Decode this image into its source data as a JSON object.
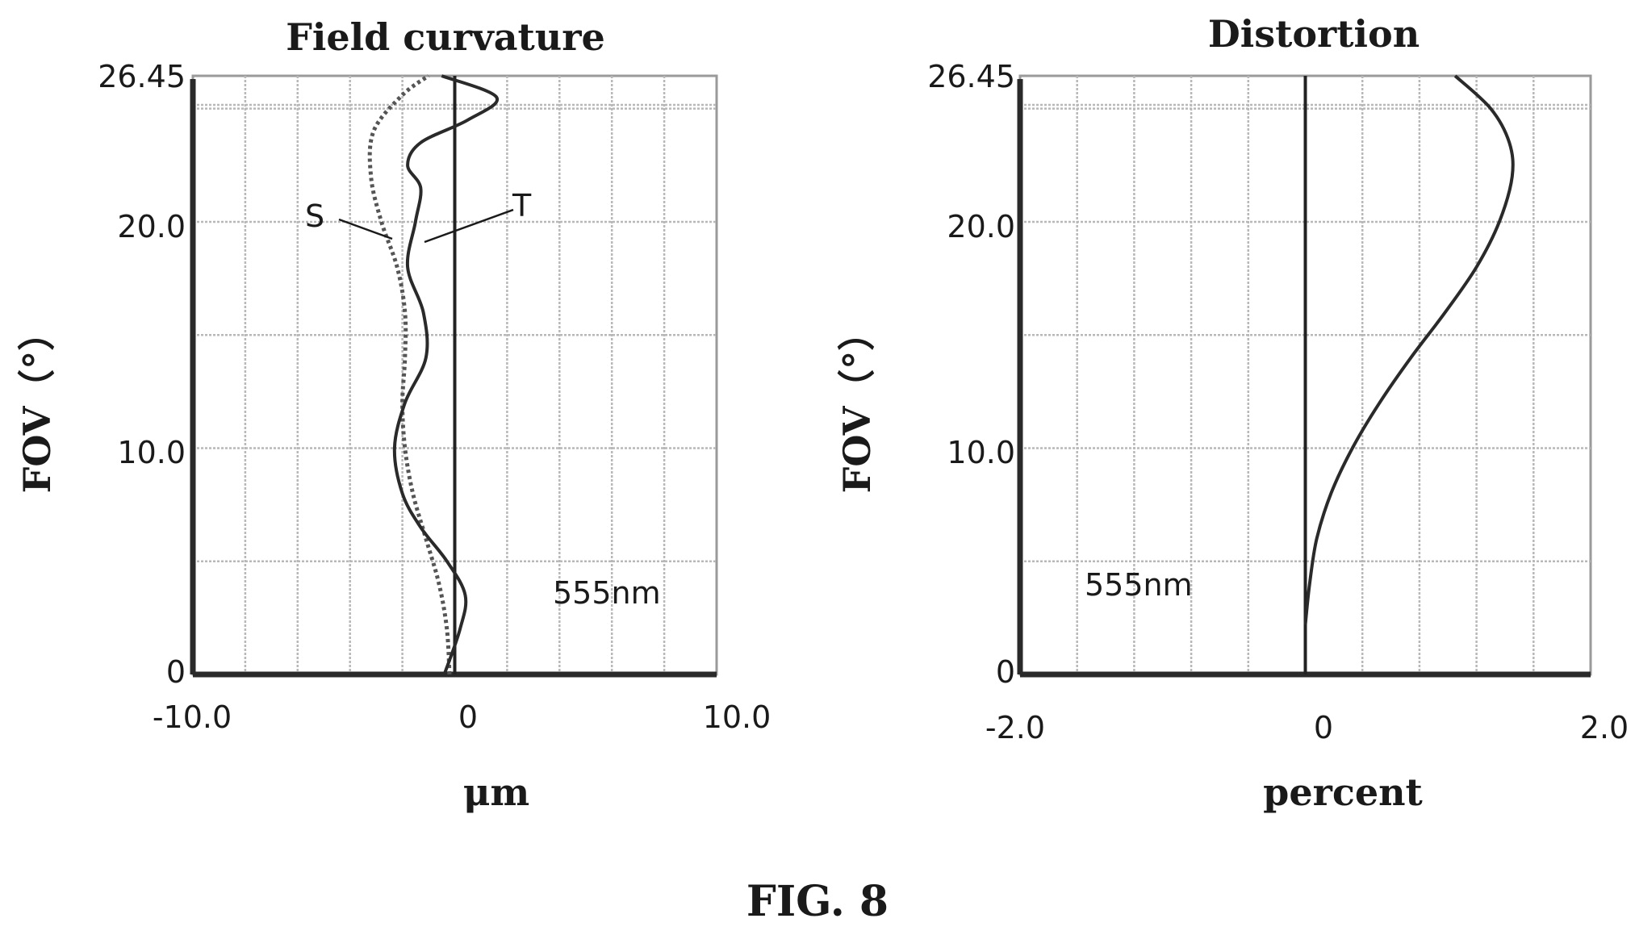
{
  "chart_data": [
    {
      "type": "line",
      "title": "Field curvature",
      "xlabel": "μm",
      "ylabel": "FOV（°）",
      "xlim": [
        -10.0,
        10.0
      ],
      "ylim": [
        0,
        26.45
      ],
      "xtick_labels": [
        "-10.0",
        "0",
        "10.0"
      ],
      "ytick_labels": [
        "0",
        "10.0",
        "20.0",
        "26.45"
      ],
      "xticks": [
        -10.0,
        0,
        10.0
      ],
      "yticks": [
        0,
        10.0,
        20.0,
        26.45
      ],
      "grid": true,
      "annotations": [
        "555nm",
        "S",
        "T"
      ],
      "series": [
        {
          "name": "S",
          "style": "dotted",
          "points": [
            [
              -0.2,
              0
            ],
            [
              -0.3,
              2
            ],
            [
              -0.6,
              4
            ],
            [
              -1.1,
              6
            ],
            [
              -1.6,
              8
            ],
            [
              -1.9,
              10
            ],
            [
              -2.0,
              12
            ],
            [
              -1.9,
              14
            ],
            [
              -1.9,
              16
            ],
            [
              -2.2,
              18
            ],
            [
              -2.8,
              20
            ],
            [
              -3.2,
              22
            ],
            [
              -3.1,
              24
            ],
            [
              -2.0,
              25.6
            ],
            [
              -1.0,
              26.45
            ]
          ]
        },
        {
          "name": "T",
          "style": "solid",
          "points": [
            [
              -0.4,
              0
            ],
            [
              0.2,
              2
            ],
            [
              0.4,
              3.5
            ],
            [
              -0.3,
              5
            ],
            [
              -1.3,
              6.5
            ],
            [
              -2.0,
              8
            ],
            [
              -2.3,
              10
            ],
            [
              -1.9,
              12
            ],
            [
              -1.1,
              14
            ],
            [
              -1.2,
              16
            ],
            [
              -1.8,
              18
            ],
            [
              -1.5,
              20
            ],
            [
              -1.3,
              21.5
            ],
            [
              -1.8,
              22.5
            ],
            [
              -1.3,
              23.5
            ],
            [
              0.5,
              24.5
            ],
            [
              1.6,
              25.5
            ],
            [
              -0.5,
              26.45
            ]
          ]
        }
      ]
    },
    {
      "type": "line",
      "title": "Distortion",
      "xlabel": "percent",
      "ylabel": "FOV（°）",
      "xlim": [
        -2.0,
        2.0
      ],
      "ylim": [
        0,
        26.45
      ],
      "xtick_labels": [
        "-2.0",
        "0",
        "2.0"
      ],
      "ytick_labels": [
        "0",
        "10.0",
        "20.0",
        "26.45"
      ],
      "xticks": [
        -2.0,
        0,
        2.0
      ],
      "yticks": [
        0,
        10.0,
        20.0,
        26.45
      ],
      "grid": true,
      "annotations": [
        "555nm"
      ],
      "series": [
        {
          "name": "",
          "style": "solid",
          "points": [
            [
              0.0,
              2.2
            ],
            [
              0.03,
              4
            ],
            [
              0.08,
              6
            ],
            [
              0.18,
              8
            ],
            [
              0.33,
              10
            ],
            [
              0.52,
              12
            ],
            [
              0.74,
              14
            ],
            [
              0.98,
              16
            ],
            [
              1.2,
              18
            ],
            [
              1.36,
              20
            ],
            [
              1.45,
              22
            ],
            [
              1.43,
              23.5
            ],
            [
              1.3,
              25
            ],
            [
              1.05,
              26.45
            ]
          ]
        }
      ]
    }
  ],
  "figure_label": "FIG. 8"
}
